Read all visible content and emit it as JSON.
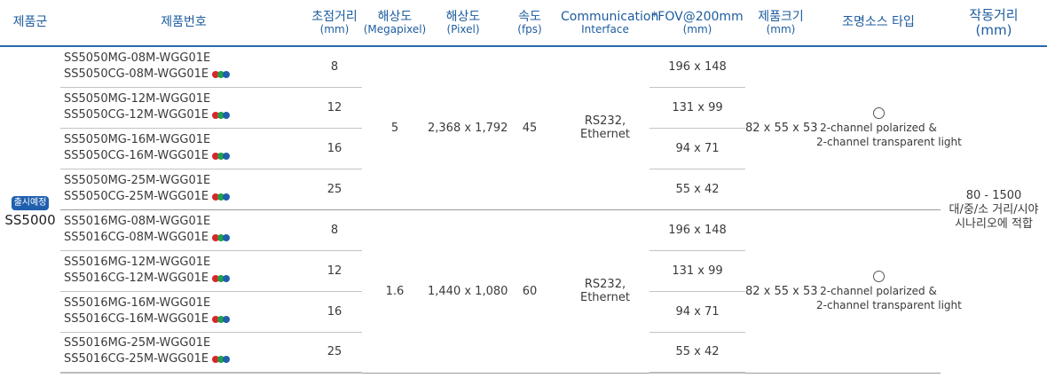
{
  "headers": {
    "group": "제품군",
    "model": "제품번호",
    "focal": {
      "title": "초점거리",
      "unit": "(mm)"
    },
    "mp": {
      "title": "해상도",
      "unit": "(Megapixel)"
    },
    "pixel": {
      "title": "해상도",
      "unit": "(Pixel)"
    },
    "fps": {
      "title": "속도",
      "unit": "(fps)"
    },
    "comm": {
      "title": "Communication",
      "unit": "Interface"
    },
    "fov": {
      "title": "*FOV@200mm",
      "unit": "(mm)"
    },
    "size": {
      "title": "제품크기",
      "unit": "(mm)"
    },
    "light": "조명소스 타입",
    "distance": {
      "title": "작동거리",
      "unit": "(mm)"
    }
  },
  "group": {
    "badge": "출시예정",
    "name": "SS5000"
  },
  "color_dots": [
    "#d9252b",
    "#23a047",
    "#1f5fae"
  ],
  "sections": [
    {
      "megapixel": "5",
      "pixel": "2,368 x 1,792",
      "fps": "45",
      "comm_line1": "RS232,",
      "comm_line2": "Ethernet",
      "size": "82 x 55 x 53",
      "light_mark": "○",
      "light_line1": "2-channel polarized &",
      "light_line2": "2-channel transparent light",
      "rows": [
        {
          "mono": "SS5050MG-08M-WGG01E",
          "color": "SS5050CG-08M-WGG01E",
          "focal": "8",
          "fov": "196 x 148"
        },
        {
          "mono": "SS5050MG-12M-WGG01E",
          "color": "SS5050CG-12M-WGG01E",
          "focal": "12",
          "fov": "131 x 99"
        },
        {
          "mono": "SS5050MG-16M-WGG01E",
          "color": "SS5050CG-16M-WGG01E",
          "focal": "16",
          "fov": "94 x 71"
        },
        {
          "mono": "SS5050MG-25M-WGG01E",
          "color": "SS5050CG-25M-WGG01E",
          "focal": "25",
          "fov": "55 x 42"
        }
      ]
    },
    {
      "megapixel": "1.6",
      "pixel": "1,440 x 1,080",
      "fps": "60",
      "comm_line1": "RS232,",
      "comm_line2": "Ethernet",
      "size": "82 x 55 x 53",
      "light_mark": "○",
      "light_line1": "2-channel polarized &",
      "light_line2": "2-channel transparent light",
      "rows": [
        {
          "mono": "SS5016MG-08M-WGG01E",
          "color": "SS5016CG-08M-WGG01E",
          "focal": "8",
          "fov": "196 x 148"
        },
        {
          "mono": "SS5016MG-12M-WGG01E",
          "color": "SS5016CG-12M-WGG01E",
          "focal": "12",
          "fov": "131 x 99"
        },
        {
          "mono": "SS5016MG-16M-WGG01E",
          "color": "SS5016CG-16M-WGG01E",
          "focal": "16",
          "fov": "94 x 71"
        },
        {
          "mono": "SS5016MG-25M-WGG01E",
          "color": "SS5016CG-25M-WGG01E",
          "focal": "25",
          "fov": "55 x 42"
        }
      ]
    }
  ],
  "distance": {
    "value": "80 - 1500",
    "line1": "대/중/소 거리/시야",
    "line2": "시나리오에 적합"
  }
}
